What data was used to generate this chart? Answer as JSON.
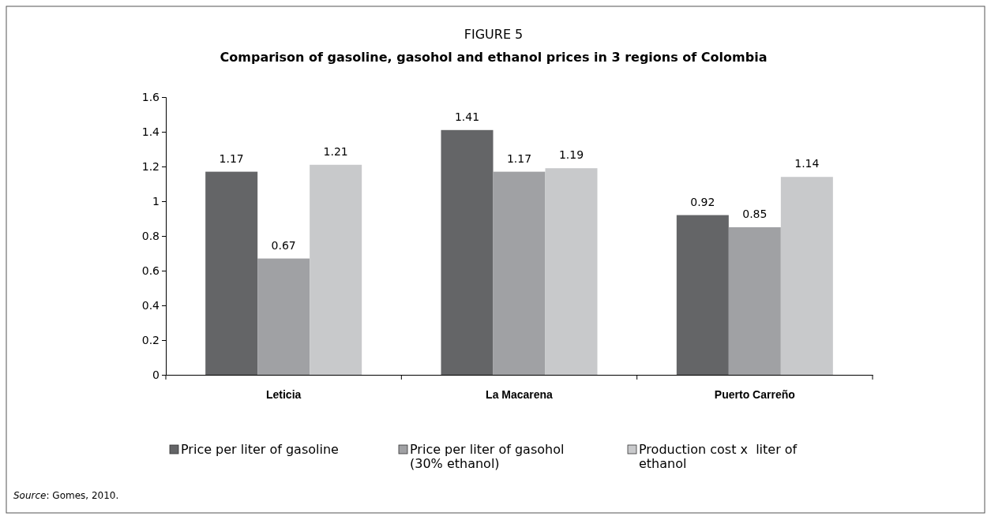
{
  "chart_data": {
    "type": "bar",
    "title": "FIGURE 5",
    "subtitle": "Comparison of gasoline, gasohol and ethanol prices in 3 regions of Colombia",
    "categories": [
      "Leticia",
      "La Macarena",
      "Puerto Carreño"
    ],
    "series": [
      {
        "name": "Price per liter of gasoline",
        "color": "#646567",
        "values": [
          1.17,
          1.41,
          0.92
        ]
      },
      {
        "name": "Price per liter of gasohol (30% ethanol)",
        "color": "#a0a1a4",
        "values": [
          0.67,
          1.17,
          0.85
        ]
      },
      {
        "name": "Production cost x  liter of ethanol",
        "color": "#c8c9cb",
        "values": [
          1.21,
          1.19,
          1.14
        ]
      }
    ],
    "ylim": [
      0,
      1.6
    ],
    "yticks": [
      0,
      0.2,
      0.4,
      0.6,
      0.8,
      1,
      1.2,
      1.4,
      1.6
    ],
    "data_labels": true,
    "legend": "bottom",
    "grid": false,
    "annotations": [
      "Source: Gomes, 2010."
    ]
  }
}
